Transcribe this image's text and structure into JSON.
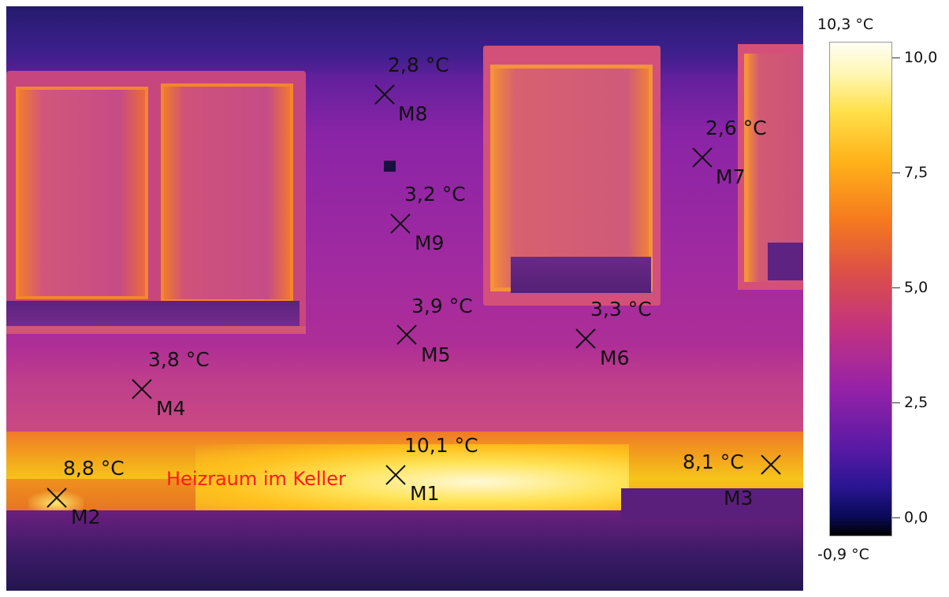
{
  "image": {
    "caption": "Heizraum im Keller",
    "caption_color": "#ff1a1a"
  },
  "markers": [
    {
      "id": "M8",
      "temp": "2,8 °C"
    },
    {
      "id": "M7",
      "temp": "2,6 °C"
    },
    {
      "id": "M9",
      "temp": "3,2 °C"
    },
    {
      "id": "M5",
      "temp": "3,9 °C"
    },
    {
      "id": "M6",
      "temp": "3,3 °C"
    },
    {
      "id": "M4",
      "temp": "3,8 °C"
    },
    {
      "id": "M1",
      "temp": "10,1 °C"
    },
    {
      "id": "M2",
      "temp": "8,8 °C"
    },
    {
      "id": "M3",
      "temp": "8,1 °C"
    }
  ],
  "scale": {
    "max_label": "10,3 °C",
    "min_label": "-0,9 °C",
    "ticks": [
      "10,0",
      "7,5",
      "5,0",
      "2,5",
      "0,0"
    ]
  }
}
